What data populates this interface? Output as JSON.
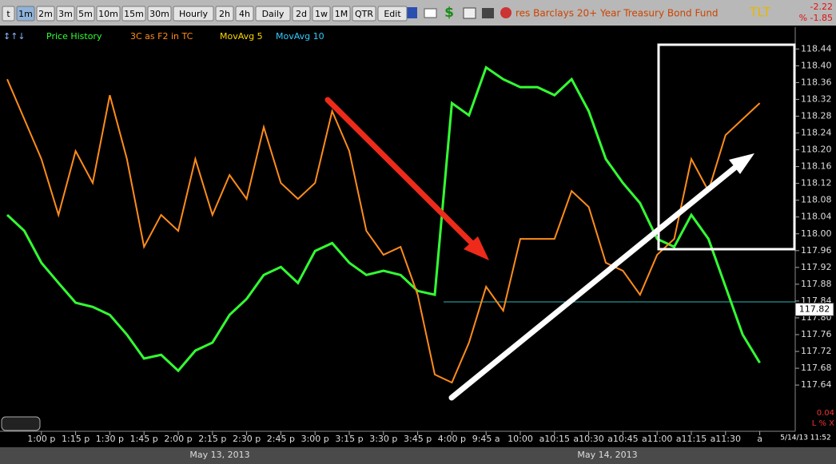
{
  "toolbar": {
    "intervals": [
      "t",
      "1m",
      "2m",
      "3m",
      "5m",
      "10m",
      "15m",
      "30m",
      "Hourly",
      "2h",
      "4h",
      "Daily",
      "2d",
      "1w",
      "1M",
      "QTR",
      "Edit"
    ],
    "active": "1m",
    "title": "res Barclays 20+ Year Treasury Bond Fund",
    "symbol": "TLT",
    "change": "-2.22",
    "change_pct": "% -1.85"
  },
  "indicators": [
    {
      "label": "Price History",
      "color": "#33ff33"
    },
    {
      "label": "3C as F2 in TC",
      "color": "#ff8c1a"
    },
    {
      "label": "MovAvg 5",
      "color": "#ffd700"
    },
    {
      "label": "MovAvg 10",
      "color": "#33ccff"
    }
  ],
  "chart_data": {
    "type": "line",
    "categories": [
      null,
      null,
      "1:00 p",
      null,
      "1:15 p",
      null,
      "1:30 p",
      null,
      "1:45 p",
      null,
      "2:00 p",
      null,
      "2:15 p",
      null,
      "2:30 p",
      null,
      "2:45 p",
      null,
      "3:00 p",
      null,
      "3:15 p",
      null,
      "3:30 p",
      null,
      "3:45 p",
      null,
      "4:00 p",
      null,
      "9:45 a",
      null,
      "10:00",
      null,
      "a10:15",
      null,
      "a10:30",
      null,
      "a10:45",
      null,
      "a11:00",
      null,
      "a11:15",
      null,
      "a11:30",
      null,
      "a",
      null,
      null
    ],
    "series": [
      {
        "name": "Price History",
        "color": "#33ff33",
        "values": [
          118.045,
          118.007,
          117.931,
          117.883,
          117.836,
          117.826,
          117.807,
          117.76,
          117.703,
          117.712,
          117.674,
          117.722,
          117.741,
          117.807,
          117.845,
          117.902,
          117.921,
          117.883,
          117.959,
          117.978,
          117.931,
          117.902,
          117.912,
          117.902,
          117.864,
          117.855,
          118.311,
          118.282,
          118.396,
          118.368,
          118.349,
          118.349,
          118.33,
          118.368,
          118.292,
          118.178,
          118.121,
          118.073,
          117.988,
          117.969,
          118.045,
          117.988,
          117.874,
          117.76,
          117.693,
          null,
          null
        ]
      },
      {
        "name": "3C as F2 in TC",
        "color": "#ff8c1a",
        "values": [
          118.368,
          118.273,
          118.178,
          118.045,
          118.197,
          118.121,
          118.33,
          118.178,
          117.969,
          118.045,
          118.007,
          118.178,
          118.045,
          118.14,
          118.083,
          118.254,
          118.121,
          118.083,
          118.121,
          118.292,
          118.197,
          118.007,
          117.95,
          117.969,
          117.855,
          117.665,
          117.646,
          117.741,
          117.874,
          117.817,
          117.988,
          117.988,
          117.988,
          118.102,
          118.064,
          117.931,
          117.912,
          117.855,
          117.95,
          117.988,
          118.178,
          118.102,
          118.235,
          118.273,
          118.311,
          null,
          null
        ]
      }
    ],
    "ylim": [
      117.53,
      118.49
    ],
    "yticks": [
      {
        "value": 118.44,
        "label": "118.44"
      },
      {
        "value": 118.4,
        "label": "118.40"
      },
      118.36,
      118.32,
      118.28,
      118.24,
      {
        "value": 118.2,
        "label": "118.20"
      },
      118.16,
      118.12,
      118.08,
      118.04,
      {
        "value": 118,
        "label": "118.00"
      },
      117.96,
      117.92,
      117.88,
      117.84,
      {
        "value": 117.8,
        "label": "117.80"
      },
      117.76,
      117.72,
      117.68,
      117.64
    ],
    "last_price": 117.82,
    "dates": [
      "May 13, 2013",
      "May 14, 2013"
    ],
    "timestamp": "5/14/13 11:52",
    "scale_step": "0.04",
    "scale_mode": "L % X"
  }
}
